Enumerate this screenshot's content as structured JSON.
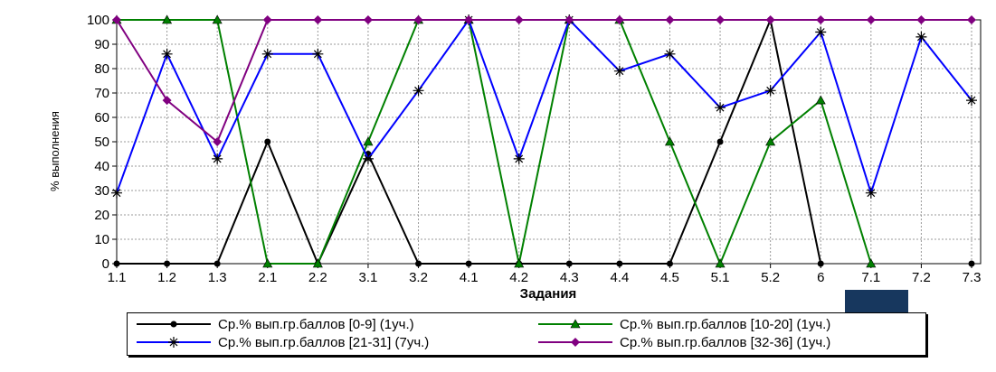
{
  "chart_data": {
    "type": "line",
    "xlabel": "Задания",
    "ylabel": "% выполнения",
    "ylim": [
      0,
      100
    ],
    "yticks": [
      0,
      10,
      20,
      30,
      40,
      50,
      60,
      70,
      80,
      90,
      100
    ],
    "grid": true,
    "legend_position": "bottom",
    "categories": [
      "1.1",
      "1.2",
      "1.3",
      "2.1",
      "2.2",
      "3.1",
      "3.2",
      "4.1",
      "4.2",
      "4.3",
      "4.4",
      "4.5",
      "5.1",
      "5.2",
      "6",
      "7.1",
      "7.2",
      "7.3"
    ],
    "series": [
      {
        "name": "Ср.% вып.гр.баллов [0-9] (1уч.)",
        "color": "#000000",
        "marker": "circle",
        "values": [
          0,
          0,
          0,
          50,
          0,
          45,
          0,
          0,
          0,
          0,
          0,
          0,
          50,
          100,
          0,
          null,
          null,
          0
        ]
      },
      {
        "name": "Ср.% вып.гр.баллов [10-20] (1уч.)",
        "color": "#008000",
        "marker": "triangle",
        "values": [
          100,
          100,
          100,
          0,
          0,
          50,
          100,
          100,
          0,
          100,
          100,
          50,
          0,
          50,
          67,
          0,
          null,
          null
        ]
      },
      {
        "name": "Ср.% вып.гр.баллов [21-31] (7уч.)",
        "color": "#0000ff",
        "marker": "star",
        "values": [
          29,
          86,
          43,
          86,
          86,
          43,
          71,
          100,
          43,
          100,
          79,
          86,
          64,
          71,
          95,
          29,
          93,
          67
        ]
      },
      {
        "name": "Ср.% вып.гр.баллов [32-36] (1уч.)",
        "color": "#800080",
        "marker": "diamond",
        "values": [
          100,
          67,
          50,
          100,
          100,
          100,
          100,
          100,
          100,
          100,
          100,
          100,
          100,
          100,
          100,
          100,
          100,
          100
        ]
      }
    ]
  },
  "decor": {
    "corner_box_color": "#17375e"
  }
}
